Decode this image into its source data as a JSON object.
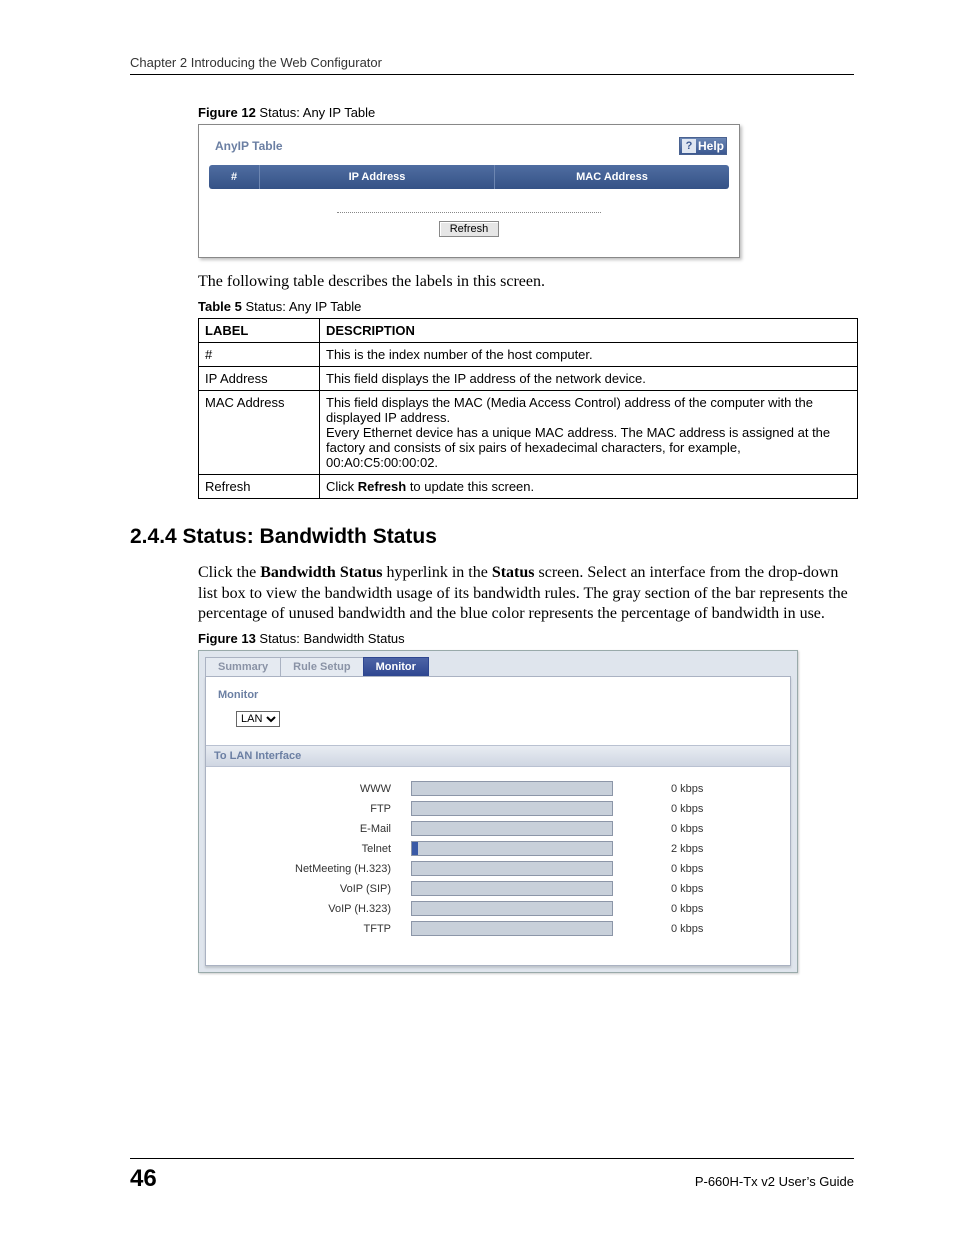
{
  "header": {
    "chapter": "Chapter 2 Introducing the Web Configurator"
  },
  "figure12": {
    "caption_bold": "Figure 12",
    "caption_rest": "   Status: Any IP Table",
    "panel_title": "AnyIP Table",
    "help_label": "Help",
    "columns": {
      "c1": "#",
      "c2": "IP Address",
      "c3": "MAC Address"
    },
    "refresh_label": "Refresh"
  },
  "intro_text": "The following table describes the labels in this screen.",
  "table5": {
    "caption_bold": "Table 5",
    "caption_rest": "   Status: Any IP Table",
    "head": {
      "label": "LABEL",
      "desc": "DESCRIPTION"
    },
    "rows": [
      {
        "label": "#",
        "desc": "This is the index number of the host computer."
      },
      {
        "label": "IP Address",
        "desc": "This field displays the IP address of the network device."
      },
      {
        "label": "MAC Address",
        "desc": "This field displays the MAC (Media Access Control) address of the computer with the displayed IP address.\nEvery Ethernet device has a unique MAC address. The MAC address is assigned at the factory and consists of six pairs of hexadecimal characters, for example, 00:A0:C5:00:00:02."
      },
      {
        "label": "Refresh",
        "desc_prefix": "Click ",
        "desc_bold": "Refresh",
        "desc_suffix": " to update this screen."
      }
    ]
  },
  "section": {
    "number_title": "2.4.4  Status: Bandwidth Status",
    "para_parts": {
      "p1": "Click the ",
      "b1": "Bandwidth Status",
      "p2": " hyperlink in the ",
      "b2": "Status",
      "p3": " screen. Select an interface from the drop-down list box to view the bandwidth usage of its bandwidth rules. The gray section of the bar represents the percentage of unused bandwidth and the blue color represents the percentage of bandwidth in use."
    }
  },
  "figure13": {
    "caption_bold": "Figure 13",
    "caption_rest": "   Status: Bandwidth Status",
    "tabs": {
      "summary": "Summary",
      "rule": "Rule Setup",
      "monitor": "Monitor"
    },
    "monitor_label": "Monitor",
    "iface_options": [
      "LAN"
    ],
    "iface_selected": "LAN",
    "section_title": "To LAN Interface",
    "bar_bg": "#c8d0da",
    "bar_fill": "#3a5aa6",
    "rows": [
      {
        "name": "WWW",
        "value": "0 kbps",
        "pct": 0
      },
      {
        "name": "FTP",
        "value": "0 kbps",
        "pct": 0
      },
      {
        "name": "E-Mail",
        "value": "0 kbps",
        "pct": 0
      },
      {
        "name": "Telnet",
        "value": "2 kbps",
        "pct": 3
      },
      {
        "name": "NetMeeting (H.323)",
        "value": "0 kbps",
        "pct": 0
      },
      {
        "name": "VoIP (SIP)",
        "value": "0 kbps",
        "pct": 0
      },
      {
        "name": "VoIP (H.323)",
        "value": "0 kbps",
        "pct": 0
      },
      {
        "name": "TFTP",
        "value": "0 kbps",
        "pct": 0
      }
    ]
  },
  "footer": {
    "page": "46",
    "guide": "P-660H-Tx v2 User’s Guide"
  }
}
